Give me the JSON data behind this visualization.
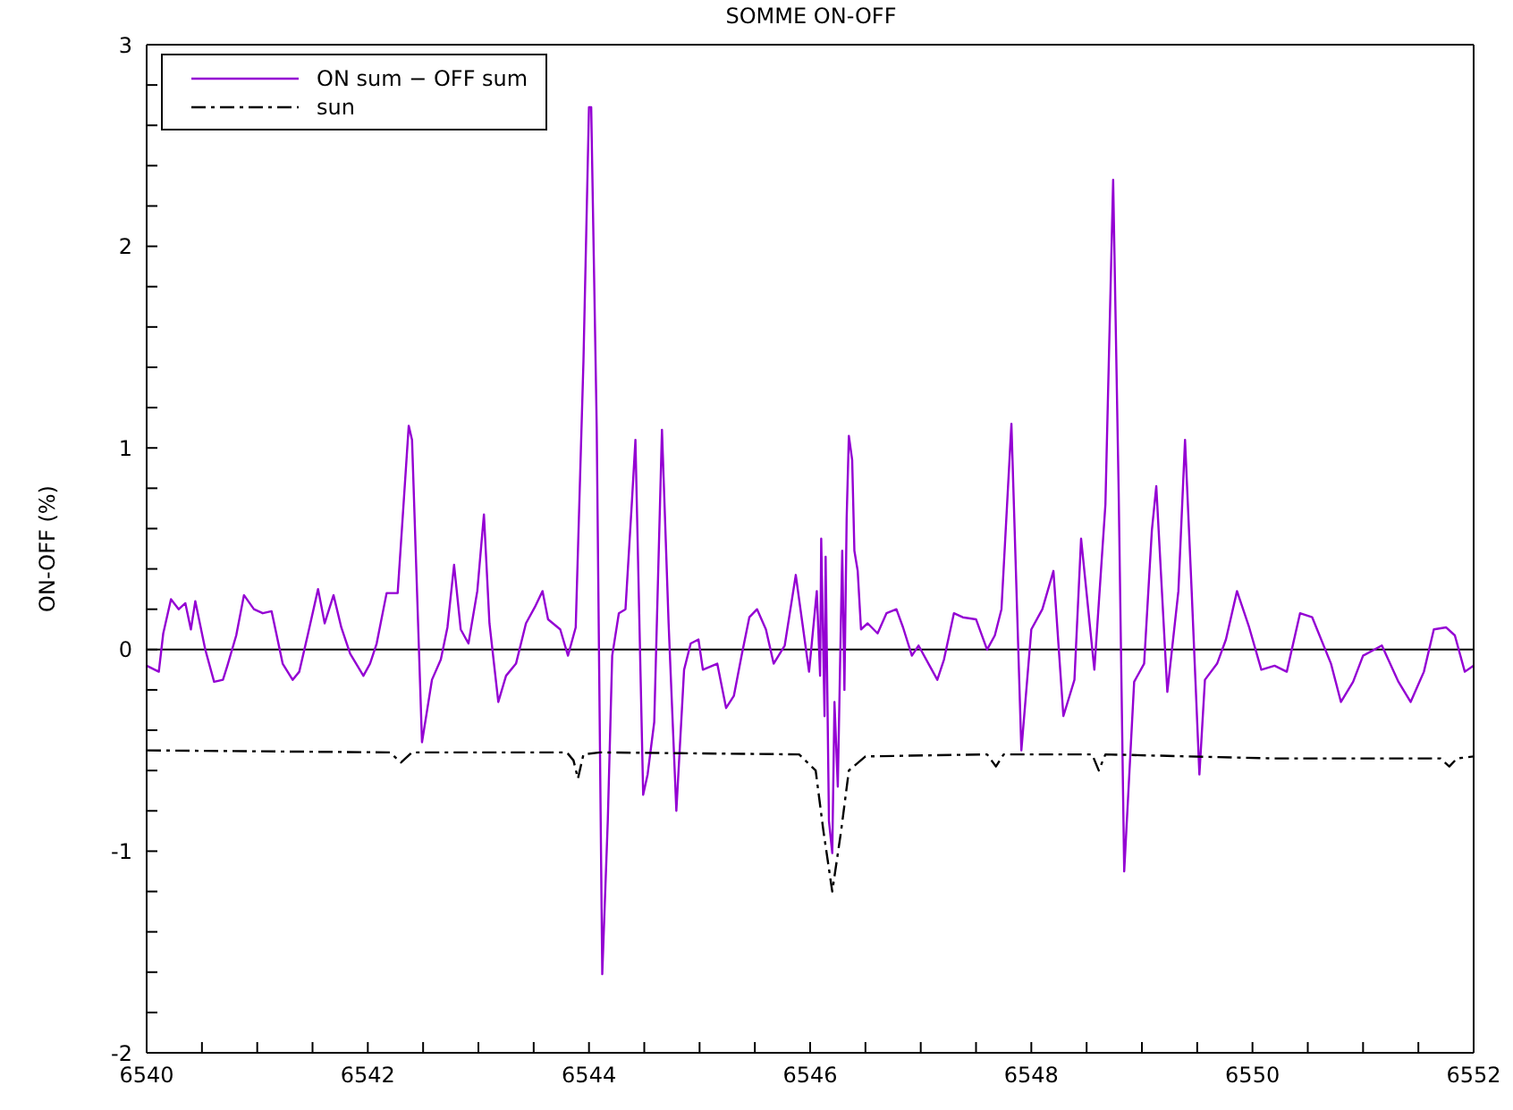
{
  "chart_data": {
    "type": "line",
    "title": "SOMME ON-OFF",
    "ylabel": "ON-OFF (%)",
    "xlim": [
      6540,
      6552
    ],
    "xticks": [
      6540,
      {
        "value": 6540.5,
        "label": null
      },
      {
        "value": 6541,
        "label": null
      },
      {
        "value": 6541.5,
        "label": null
      },
      6542,
      {
        "value": 6542.5,
        "label": null
      },
      {
        "value": 6543,
        "label": null
      },
      {
        "value": 6543.5,
        "label": null
      },
      6544,
      {
        "value": 6544.5,
        "label": null
      },
      {
        "value": 6545,
        "label": null
      },
      {
        "value": 6545.5,
        "label": null
      },
      6546,
      {
        "value": 6546.5,
        "label": null
      },
      {
        "value": 6547,
        "label": null
      },
      {
        "value": 6547.5,
        "label": null
      },
      6548,
      {
        "value": 6548.5,
        "label": null
      },
      {
        "value": 6549,
        "label": null
      },
      {
        "value": 6549.5,
        "label": null
      },
      6550,
      {
        "value": 6550.5,
        "label": null
      },
      {
        "value": 6551,
        "label": null
      },
      {
        "value": 6551.5,
        "label": null
      },
      6552
    ],
    "ylim": [
      -2,
      3
    ],
    "yticks": [
      -2,
      {
        "value": -1.8,
        "label": null
      },
      {
        "value": -1.6,
        "label": null
      },
      {
        "value": -1.4,
        "label": null
      },
      {
        "value": -1.2,
        "label": null
      },
      -1,
      {
        "value": -0.8,
        "label": null
      },
      {
        "value": -0.6,
        "label": null
      },
      {
        "value": -0.4,
        "label": null
      },
      {
        "value": -0.2,
        "label": null
      },
      0,
      {
        "value": 0.2,
        "label": null
      },
      {
        "value": 0.4,
        "label": null
      },
      {
        "value": 0.6,
        "label": null
      },
      {
        "value": 0.8,
        "label": null
      },
      1,
      {
        "value": 1.2,
        "label": null
      },
      {
        "value": 1.4,
        "label": null
      },
      {
        "value": 1.6,
        "label": null
      },
      {
        "value": 1.8,
        "label": null
      },
      2,
      {
        "value": 2.2,
        "label": null
      },
      {
        "value": 2.4,
        "label": null
      },
      {
        "value": 2.6,
        "label": null
      },
      {
        "value": 2.8,
        "label": null
      },
      3
    ],
    "legend": "top left",
    "marker": "none",
    "ref_lines": [
      {
        "axis": "y",
        "value": 0,
        "color": "#000000",
        "line_style": "solid"
      }
    ],
    "series": [
      {
        "name": "ON sum − OFF sum",
        "color": "#9400d3",
        "line_style": "solid",
        "x": [
          6540.0,
          6540.11,
          6540.15,
          6540.22,
          6540.29,
          6540.35,
          6540.4,
          6540.44,
          6540.53,
          6540.61,
          6540.69,
          6540.73,
          6540.81,
          6540.88,
          6540.97,
          6541.05,
          6541.13,
          6541.23,
          6541.32,
          6541.38,
          6541.46,
          6541.55,
          6541.61,
          6541.69,
          6541.76,
          6541.84,
          6541.96,
          6542.02,
          6542.08,
          6542.17,
          6542.27,
          6542.37,
          6542.4,
          6542.49,
          6542.58,
          6542.66,
          6542.72,
          6542.78,
          6542.84,
          6542.91,
          6542.99,
          6543.05,
          6543.1,
          6543.18,
          6543.25,
          6543.34,
          6543.43,
          6543.51,
          6543.58,
          6543.63,
          6543.74,
          6543.81,
          6543.88,
          6543.95,
          6544.0,
          6544.02,
          6544.07,
          6544.12,
          6544.17,
          6544.21,
          6544.27,
          6544.33,
          6544.39,
          6544.42,
          6544.49,
          6544.53,
          6544.59,
          6544.66,
          6544.72,
          6544.79,
          6544.86,
          6544.92,
          6544.99,
          6545.03,
          6545.16,
          6545.24,
          6545.31,
          6545.38,
          6545.45,
          6545.52,
          6545.6,
          6545.67,
          6545.77,
          6545.87,
          6545.93,
          6545.99,
          6546.06,
          6546.09,
          6546.1,
          6546.13,
          6546.14,
          6546.17,
          6546.2,
          6546.22,
          6546.25,
          6546.29,
          6546.31,
          6546.33,
          6546.35,
          6546.38,
          6546.4,
          6546.43,
          6546.46,
          6546.52,
          6546.61,
          6546.69,
          6546.78,
          6546.84,
          6546.92,
          6546.98,
          6547.07,
          6547.15,
          6547.21,
          6547.3,
          6547.38,
          6547.5,
          6547.6,
          6547.67,
          6547.73,
          6547.82,
          6547.91,
          6548.0,
          6548.1,
          6548.2,
          6548.29,
          6548.39,
          6548.45,
          6548.57,
          6548.67,
          6548.74,
          6548.79,
          6548.84,
          6548.93,
          6549.02,
          6549.09,
          6549.13,
          6549.23,
          6549.33,
          6549.39,
          6549.45,
          6549.52,
          6549.57,
          6549.68,
          6549.76,
          6549.86,
          6549.97,
          6550.08,
          6550.2,
          6550.31,
          6550.43,
          6550.54,
          6550.71,
          6550.8,
          6550.91,
          6551.0,
          6551.17,
          6551.32,
          6551.43,
          6551.55,
          6551.64,
          6551.75,
          6551.83,
          6551.92,
          6552.0
        ],
        "values": [
          -0.08,
          -0.11,
          0.08,
          0.25,
          0.2,
          0.23,
          0.1,
          0.24,
          0,
          -0.16,
          -0.15,
          -0.08,
          0.07,
          0.27,
          0.2,
          0.18,
          0.19,
          -0.07,
          -0.15,
          -0.11,
          0.08,
          0.3,
          0.13,
          0.27,
          0.11,
          -0.02,
          -0.13,
          -0.07,
          0.03,
          0.28,
          0.28,
          1.11,
          1.04,
          -0.46,
          -0.15,
          -0.05,
          0.11,
          0.42,
          0.1,
          0.03,
          0.29,
          0.67,
          0.13,
          -0.26,
          -0.13,
          -0.07,
          0.13,
          0.21,
          0.29,
          0.15,
          0.1,
          -0.03,
          0.11,
          1.43,
          2.69,
          2.69,
          1.1,
          -1.61,
          -0.85,
          -0.03,
          0.18,
          0.2,
          0.75,
          1.04,
          -0.72,
          -0.62,
          -0.36,
          1.09,
          0.13,
          -0.8,
          -0.1,
          0.03,
          0.05,
          -0.1,
          -0.07,
          -0.29,
          -0.23,
          -0.03,
          0.16,
          0.2,
          0.1,
          -0.07,
          0.02,
          0.37,
          0.13,
          -0.11,
          0.29,
          -0.13,
          0.55,
          -0.33,
          0.46,
          -0.85,
          -1.01,
          -0.26,
          -0.68,
          0.49,
          -0.2,
          0.65,
          1.06,
          0.94,
          0.49,
          0.39,
          0.1,
          0.13,
          0.08,
          0.18,
          0.2,
          0.11,
          -0.03,
          0.02,
          -0.07,
          -0.15,
          -0.05,
          0.18,
          0.16,
          0.15,
          0,
          0.07,
          0.2,
          1.12,
          -0.5,
          0.1,
          0.2,
          0.39,
          -0.33,
          -0.15,
          0.55,
          -0.1,
          0.72,
          2.33,
          0.78,
          -1.1,
          -0.16,
          -0.07,
          0.59,
          0.81,
          -0.21,
          0.29,
          1.04,
          0.29,
          -0.62,
          -0.15,
          -0.07,
          0.05,
          0.29,
          0.11,
          -0.1,
          -0.08,
          -0.11,
          0.18,
          0.16,
          -0.07,
          -0.26,
          -0.16,
          -0.03,
          0.02,
          -0.16,
          -0.26,
          -0.11,
          0.1,
          0.11,
          0.07,
          -0.11,
          -0.08
        ]
      },
      {
        "name": "sun",
        "color": "#000000",
        "line_style": "dashdot",
        "x": [
          6540,
          6542.2,
          6542.3,
          6542.4,
          6543.8,
          6543.86,
          6543.9,
          6543.95,
          6544.1,
          6545.9,
          6546.05,
          6546.12,
          6546.2,
          6546.28,
          6546.35,
          6546.5,
          6547.6,
          6547.68,
          6547.75,
          6548.55,
          6548.61,
          6548.67,
          6550.2,
          6551.7,
          6551.78,
          6551.85,
          6552
        ],
        "values": [
          -0.5,
          -0.51,
          -0.56,
          -0.51,
          -0.51,
          -0.55,
          -0.64,
          -0.52,
          -0.51,
          -0.52,
          -0.6,
          -0.9,
          -1.2,
          -0.9,
          -0.6,
          -0.53,
          -0.52,
          -0.58,
          -0.52,
          -0.52,
          -0.6,
          -0.52,
          -0.54,
          -0.54,
          -0.58,
          -0.54,
          -0.53
        ]
      }
    ]
  }
}
